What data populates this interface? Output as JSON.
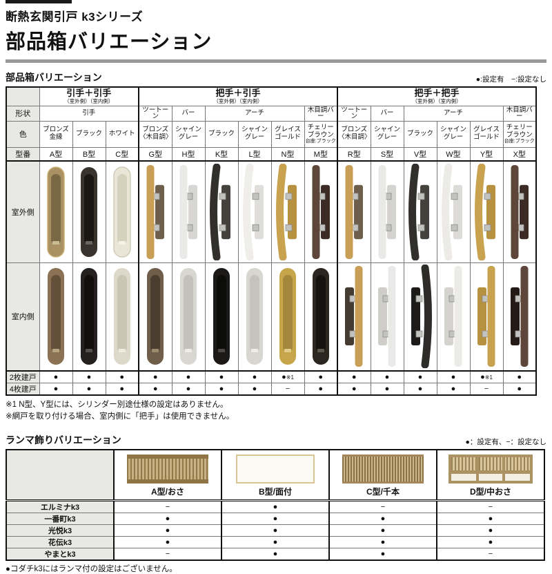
{
  "page": {
    "series_label": "断熱玄関引戸 k3シリーズ",
    "main_title": "部品箱バリエーション"
  },
  "parts_section": {
    "title": "部品箱バリエーション",
    "legend": "●:設定有　−:設定なし",
    "row_labels": {
      "shape": "形状",
      "color": "色",
      "model": "型番",
      "outdoor": "室外側",
      "indoor": "室内側",
      "two_panel": "2枚建戸",
      "four_panel": "4枚建戸"
    },
    "groups": [
      {
        "label": "引手＋引手",
        "sub": "（室外側）（室内側）",
        "span": 3
      },
      {
        "label": "把手＋引手",
        "sub": "（室外側）（室内側）",
        "span": 6
      },
      {
        "label": "把手＋把手",
        "sub": "（室外側）（室内側）",
        "span": 6
      }
    ],
    "shapes": [
      {
        "label": "引手",
        "span": 3
      },
      {
        "label": "ツートーン",
        "span": 1
      },
      {
        "label": "バー",
        "span": 1
      },
      {
        "label": "アーチ",
        "span": 3
      },
      {
        "label": "木目調バー",
        "span": 1
      },
      {
        "label": "ツートーン",
        "span": 1
      },
      {
        "label": "バー",
        "span": 1
      },
      {
        "label": "アーチ",
        "span": 3
      },
      {
        "label": "木目調バー",
        "span": 1
      }
    ],
    "columns": [
      {
        "model": "A型",
        "color": "ブロンズ金縁",
        "color_note": "",
        "two": "●",
        "two_note": "",
        "four": "●",
        "outdoor": {
          "kind": "pull",
          "plate": "#aa9164",
          "recess": "#7a6743",
          "edge": "#cdb277",
          "latch": "#c9bd93"
        },
        "indoor": {
          "kind": "pull",
          "plate": "#8b7254",
          "recess": "#64503a",
          "latch": "#b5a47f"
        }
      },
      {
        "model": "B型",
        "color": "ブラック",
        "color_note": "",
        "two": "●",
        "two_note": "",
        "four": "●",
        "outdoor": {
          "kind": "pull",
          "plate": "#38332d",
          "recess": "#191613",
          "latch": "#6a665f"
        },
        "indoor": {
          "kind": "pull",
          "plate": "#242120",
          "recess": "#100f0e",
          "latch": "#55524e"
        }
      },
      {
        "model": "C型",
        "color": "ホワイト",
        "color_note": "",
        "two": "●",
        "two_note": "",
        "four": "●",
        "outdoor": {
          "kind": "pull",
          "plate": "#eae6d7",
          "recess": "#d6d1bd",
          "edge": "#d0cbb8",
          "latch": "#f4f1e5"
        },
        "indoor": {
          "kind": "pull",
          "plate": "#ddd9ca",
          "recess": "#cbc6b4",
          "latch": "#eeeadd"
        }
      },
      {
        "model": "G型",
        "color": "ブロンズ〈木目調〉",
        "color_note": "",
        "two": "●",
        "two_note": "",
        "four": "●",
        "outdoor": {
          "kind": "bar",
          "bar": "#c99e57",
          "plate": "#6e5f4d"
        },
        "indoor": {
          "kind": "pull",
          "plate": "#6f5e4a",
          "recess": "#4b3e30",
          "latch": "#9b8a6e"
        }
      },
      {
        "model": "H型",
        "color": "シャイングレー",
        "color_note": "",
        "two": "●",
        "two_note": "",
        "four": "●",
        "outdoor": {
          "kind": "bar",
          "bar": "#eaeae8",
          "plate": "#d7d6d3"
        },
        "indoor": {
          "kind": "pull",
          "plate": "#d9d7d2",
          "recess": "#c3c1bb",
          "latch": "#efede8"
        }
      },
      {
        "model": "K型",
        "color": "ブラック",
        "color_note": "",
        "two": "●",
        "two_note": "",
        "four": "●",
        "outdoor": {
          "kind": "arch",
          "bar": "#32302c",
          "plate": "#45423e"
        },
        "indoor": {
          "kind": "pull",
          "plate": "#1b1a19",
          "recess": "#0c0c0b",
          "latch": "#4a4845"
        }
      },
      {
        "model": "L型",
        "color": "シャイングレー",
        "color_note": "",
        "two": "●",
        "two_note": "",
        "four": "●",
        "outdoor": {
          "kind": "arch",
          "bar": "#efeeea",
          "plate": "#dfdedb"
        },
        "indoor": {
          "kind": "pull",
          "plate": "#d8d6d0",
          "recess": "#c5c3bd",
          "latch": "#efede8"
        }
      },
      {
        "model": "N型",
        "color": "グレイスゴールド",
        "color_note": "",
        "two": "●",
        "two_note": "※1",
        "four": "−",
        "outdoor": {
          "kind": "arch",
          "bar": "#c8a24e",
          "plate": "#b6913f"
        },
        "indoor": {
          "kind": "pull",
          "plate": "#c6a54b",
          "recess": "#a5873c",
          "latch": "#e2cb88"
        }
      },
      {
        "model": "M型",
        "color": "チェリーブラウン",
        "color_note": "台座:ブラック",
        "two": "●",
        "two_note": "",
        "four": "●",
        "outdoor": {
          "kind": "bar",
          "bar": "#5e463a",
          "plate": "#3c2b24"
        },
        "indoor": {
          "kind": "pull",
          "plate": "#2c2620",
          "recess": "#151210",
          "latch": "#5d564d"
        }
      },
      {
        "model": "R型",
        "color": "ブロンズ〈木目調〉",
        "color_note": "",
        "two": "●",
        "two_note": "",
        "four": "●",
        "outdoor": {
          "kind": "bar",
          "bar": "#c99e57",
          "plate": "#6e5f4d"
        },
        "indoor": {
          "kind": "bar",
          "bar": "#c99e57",
          "plate": "#443b32",
          "flip": true
        }
      },
      {
        "model": "S型",
        "color": "シャイングレー",
        "color_note": "",
        "two": "●",
        "two_note": "",
        "four": "●",
        "outdoor": {
          "kind": "bar",
          "bar": "#e9e9e7",
          "plate": "#d4d3d0"
        },
        "indoor": {
          "kind": "bar",
          "bar": "#e9e9e7",
          "plate": "#cfcecb",
          "flip": true
        }
      },
      {
        "model": "V型",
        "color": "ブラック",
        "color_note": "",
        "two": "●",
        "two_note": "",
        "four": "●",
        "outdoor": {
          "kind": "arch",
          "bar": "#32302c",
          "plate": "#45423e"
        },
        "indoor": {
          "kind": "arch",
          "bar": "#2e2c29",
          "plate": "#1c1b1a",
          "flip": true
        }
      },
      {
        "model": "W型",
        "color": "シャイングレー",
        "color_note": "",
        "two": "●",
        "two_note": "",
        "four": "●",
        "outdoor": {
          "kind": "arch",
          "bar": "#ecebe8",
          "plate": "#dcdbd8"
        },
        "indoor": {
          "kind": "bar",
          "bar": "#ecebe8",
          "plate": "#d4d3d0",
          "flip": true
        }
      },
      {
        "model": "Y型",
        "color": "グレイスゴールド",
        "color_note": "",
        "two": "●",
        "two_note": "※1",
        "four": "−",
        "outdoor": {
          "kind": "arch",
          "bar": "#c8a24e",
          "plate": "#b6913f"
        },
        "indoor": {
          "kind": "bar",
          "bar": "#c8a24e",
          "plate": "#b6913f",
          "flip": true
        }
      },
      {
        "model": "X型",
        "color": "チェリーブラウン",
        "color_note": "台座:ブラック",
        "two": "●",
        "two_note": "",
        "four": "●",
        "outdoor": {
          "kind": "bar",
          "bar": "#5e463a",
          "plate": "#3c2b24"
        },
        "indoor": {
          "kind": "bar",
          "bar": "#5e463a",
          "plate": "#241a16",
          "flip": true
        }
      }
    ],
    "footnotes": [
      "※1 N型、Y型には、シリンダー別途仕様の設定はありません。",
      "※網戸を取り付ける場合、室内側に「把手」は使用できません。"
    ]
  },
  "ranma_section": {
    "title": "ランマ飾りバリエーション",
    "legend": "●：設定有、−：設定なし",
    "columns": [
      {
        "label": "A型/おさ",
        "pattern": "rn-a"
      },
      {
        "label": "B型/面付",
        "pattern": "rn-b"
      },
      {
        "label": "C型/千本",
        "pattern": "rn-c"
      },
      {
        "label": "D型/中おさ",
        "pattern": "rn-d"
      }
    ],
    "rows": [
      {
        "label": "エルミナk3",
        "values": [
          "−",
          "●",
          "−",
          "−"
        ]
      },
      {
        "label": "一番町k3",
        "values": [
          "●",
          "●",
          "●",
          "●"
        ]
      },
      {
        "label": "光悦k3",
        "values": [
          "●",
          "●",
          "●",
          "●"
        ]
      },
      {
        "label": "花伝k3",
        "values": [
          "●",
          "●",
          "●",
          "●"
        ]
      },
      {
        "label": "やまとk3",
        "values": [
          "−",
          "●",
          "●",
          "−"
        ]
      }
    ],
    "note": "●コダチk3にはランマ付の設定はございません。"
  }
}
